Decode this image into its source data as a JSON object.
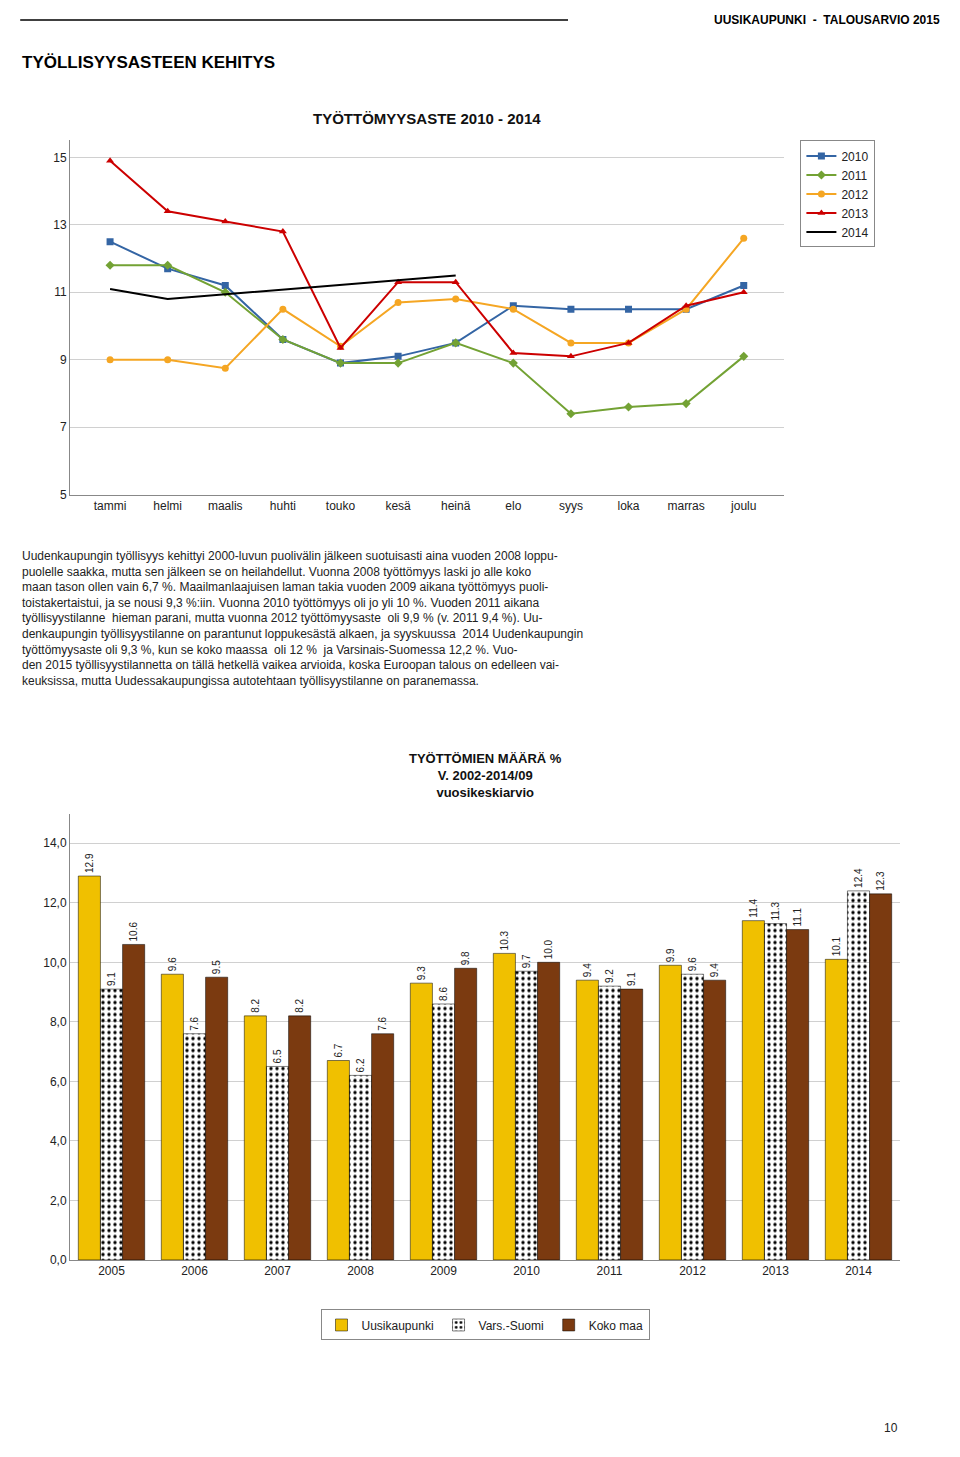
{
  "header": "UUSIKAUPUNKI  -  TALOUSARVIO 2015",
  "title": "TYÖLLISYYSASTEEN KEHITYS",
  "paragraph": [
    "Uudenkaupungin työllisyys kehittyi 2000-luvun puolivälin jälkeen suotuisasti aina vuoden 2008 loppu-",
    "puolelle saakka, mutta sen jälkeen se on heilahdellut. Vuonna 2008 työttömyys laski jo alle koko",
    "maan tason ollen vain 6,7 %. Maailmanlaajuisen laman takia vuoden 2009 aikana työttömyys puoli-",
    "toistakertaistui, ja se nousi 9,3 %:iin. Vuonna 2010 työttömyys oli jo yli 10 %. Vuoden 2011 aikana",
    "työllisyystilanne  hieman parani, mutta vuonna 2012 työttömyysaste  oli 9,9 % (v. 2011 9,4 %). Uu-",
    "denkaupungin työllisyystilanne on parantunut loppukesästä alkaen, ja syyskuussa  2014 Uudenkaupungin",
    "työttömyysaste oli 9,3 %, kun se koko maassa  oli 12 %  ja Varsinais-Suomessa 12,2 %. Vuo-",
    "den 2015 työllisyystilannetta on tällä hetkellä vaikea arvioida, koska Euroopan talous on edelleen vai-",
    "keuksissa, mutta Uudessakaupungissa autotehtaan työllisyystilanne on paranemassa."
  ],
  "page_number": "10",
  "chart_data": [
    {
      "type": "line",
      "title": "TYÖTTÖMYYSASTE 2010 - 2014",
      "categories": [
        "tammi",
        "helmi",
        "maalis",
        "huhti",
        "touko",
        "kesä",
        "heinä",
        "elo",
        "syys",
        "loka",
        "marras",
        "joulu"
      ],
      "series": [
        {
          "name": "2010",
          "color": "#3465a4",
          "marker": "square",
          "values": [
            12.5,
            11.7,
            11.2,
            9.6,
            8.9,
            9.1,
            9.5,
            10.6,
            10.5,
            10.5,
            10.5,
            11.2
          ]
        },
        {
          "name": "2011",
          "color": "#73a234",
          "marker": "diamond",
          "values": [
            11.8,
            11.8,
            11.0,
            9.6,
            8.9,
            8.9,
            9.5,
            8.9,
            7.4,
            7.6,
            7.7,
            9.1
          ]
        },
        {
          "name": "2012",
          "color": "#f5a623",
          "marker": "circle",
          "values": [
            9.0,
            9.0,
            8.75,
            10.5,
            9.4,
            10.7,
            10.8,
            10.5,
            9.5,
            9.5,
            10.5,
            12.6
          ]
        },
        {
          "name": "2013",
          "color": "#cc0000",
          "marker": "triangle-up",
          "values": [
            14.9,
            13.4,
            13.1,
            12.8,
            9.35,
            11.3,
            11.3,
            9.2,
            9.1,
            9.5,
            10.6,
            11.0
          ]
        },
        {
          "name": "2014",
          "color": "#000000",
          "marker": "none",
          "values": [
            11.1,
            10.8,
            null,
            null,
            null,
            null,
            11.5,
            null,
            null,
            null,
            null,
            null
          ]
        }
      ],
      "ylim": [
        5,
        15.5
      ],
      "yticks": [
        5,
        7,
        9,
        11,
        13,
        15
      ],
      "grid": true,
      "legend": "upper right"
    },
    {
      "type": "bar",
      "title": "TYÖTTÖMIEN MÄÄRÄ %\nV. 2002-2014/09\nvuosikeskiarvio",
      "categories": [
        "2005",
        "2006",
        "2007",
        "2008",
        "2009",
        "2010",
        "2011",
        "2012",
        "2013",
        "2014"
      ],
      "series": [
        {
          "name": "Uusikaupunki",
          "color": "#f0c000",
          "values": [
            12.9,
            9.6,
            8.2,
            6.7,
            9.3,
            10.3,
            9.4,
            9.9,
            11.4,
            10.1
          ]
        },
        {
          "name": "Vars.-Suomi",
          "color": "#c8a028",
          "marker": "dots",
          "values": [
            9.1,
            7.6,
            6.5,
            6.2,
            8.6,
            9.7,
            9.2,
            9.6,
            11.3,
            12.4
          ]
        },
        {
          "name": "Koko maa",
          "color": "#7b3a10",
          "values": [
            10.6,
            9.5,
            8.2,
            7.6,
            9.8,
            10.0,
            9.1,
            9.4,
            11.1,
            12.3
          ],
          "value_labels": [
            "10.6",
            "9.5",
            "8.2",
            "7.6",
            "9.8",
            "10.0",
            "9.1",
            "9.4",
            "11.1",
            "12.3"
          ]
        }
      ],
      "ylim": [
        0,
        15.0
      ],
      "yticks": [
        {
          "value": 0.0,
          "label": "0,0"
        },
        {
          "value": 2.0,
          "label": "2,0"
        },
        {
          "value": 4.0,
          "label": "4,0"
        },
        {
          "value": 6.0,
          "label": "6,0"
        },
        {
          "value": 8.0,
          "label": "8,0"
        },
        {
          "value": 10.0,
          "label": "10,0"
        },
        {
          "value": 12.0,
          "label": "12,0"
        },
        {
          "value": 14.0,
          "label": "14,0"
        }
      ],
      "grid": true,
      "data_labels": true,
      "legend": "bottom"
    }
  ]
}
